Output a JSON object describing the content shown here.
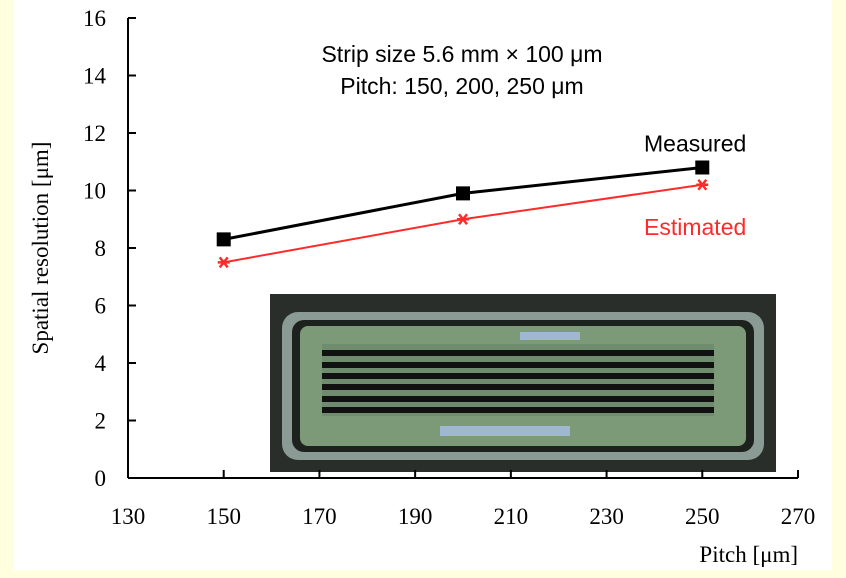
{
  "chart_data": {
    "type": "line",
    "annotations": [
      "Strip size 5.6 mm × 100 μm",
      "Pitch: 150, 200, 250 μm"
    ],
    "xlabel": "Pitch [μm]",
    "ylabel": "Spatial resolution [μm]",
    "x": [
      150,
      200,
      250
    ],
    "series": [
      {
        "name": "Measured",
        "color": "#000000",
        "marker": "square",
        "values": [
          8.3,
          9.9,
          10.8
        ]
      },
      {
        "name": "Estimated",
        "color": "#ff2a2a",
        "marker": "star",
        "values": [
          7.5,
          9.0,
          10.2
        ]
      }
    ],
    "xlim": [
      130,
      270
    ],
    "xticks": [
      130,
      150,
      170,
      190,
      210,
      230,
      250,
      270
    ],
    "ylim": [
      0,
      16
    ],
    "yticks": [
      0,
      2,
      4,
      6,
      8,
      10,
      12,
      14,
      16
    ]
  }
}
